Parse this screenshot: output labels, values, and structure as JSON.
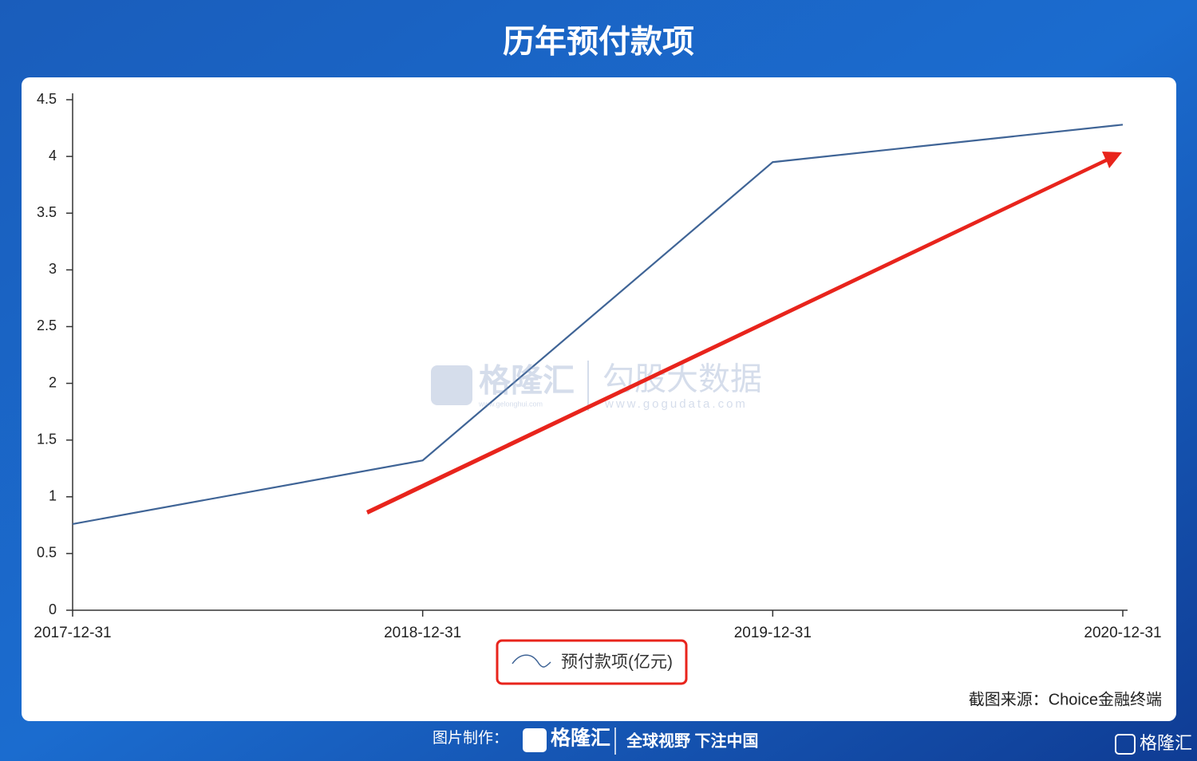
{
  "chart_data": {
    "type": "line",
    "title": "历年预付款项",
    "categories": [
      "2017-12-31",
      "2018-12-31",
      "2019-12-31",
      "2020-12-31"
    ],
    "series": [
      {
        "name": "预付款项(亿元)",
        "color": "#3f6496",
        "values": [
          0.76,
          1.32,
          3.95,
          4.28
        ]
      }
    ],
    "ylim": [
      0,
      4.5
    ],
    "yticks": [
      0,
      0.5,
      1,
      1.5,
      2,
      2.5,
      3,
      3.5,
      4,
      4.5
    ],
    "source": "截图来源：Choice金融终端"
  },
  "branding": {
    "watermark_left": "格隆汇",
    "watermark_left_url": "www.gelonghui.com",
    "watermark_right": "勾股大数据",
    "watermark_right_url": "www.gogudata.com",
    "footer_label": "图片制作：",
    "footer_brand": "格隆汇",
    "footer_slogan": "全球视野 下注中国",
    "corner_brand": "格隆汇"
  }
}
